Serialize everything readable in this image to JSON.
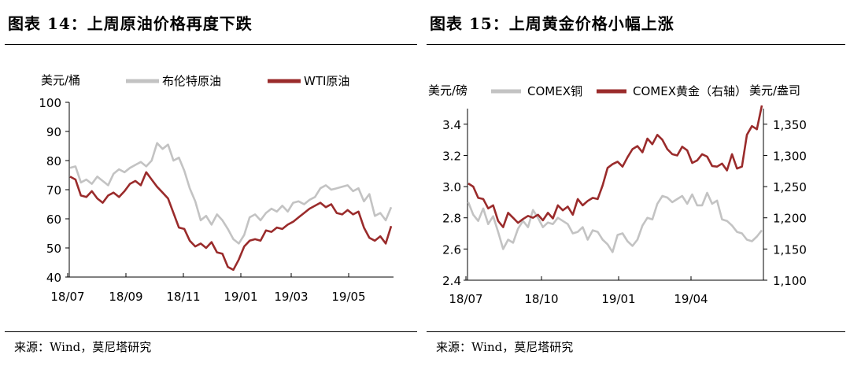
{
  "figures": [
    {
      "title": "图表 14：上周原油价格再度下跌",
      "source": "来源：Wind，莫尼塔研究",
      "chart_data": {
        "type": "line",
        "y_unit": "美元/桶",
        "ylim": [
          40,
          100
        ],
        "yticks": [
          "100",
          "90",
          "80",
          "70",
          "60",
          "50",
          "40"
        ],
        "xticks": [
          "18/07",
          "18/09",
          "18/11",
          "19/01",
          "19/03",
          "19/05"
        ],
        "x_range": [
          "2018-07",
          "2019-06 end"
        ],
        "legend": "top",
        "grid": false,
        "series": [
          {
            "name": "布伦特原油",
            "color": "#c3c3c3",
            "axis": "left",
            "values": [
              77.5,
              78.0,
              72.5,
              73.5,
              72.0,
              74.5,
              73.0,
              71.5,
              75.5,
              77.0,
              76.0,
              77.5,
              78.5,
              79.5,
              78.0,
              80.0,
              86.0,
              84.0,
              85.5,
              80.0,
              81.0,
              76.5,
              70.5,
              66.0,
              59.5,
              61.0,
              58.0,
              61.5,
              59.5,
              56.5,
              53.0,
              51.5,
              54.5,
              60.5,
              61.5,
              59.5,
              62.0,
              63.5,
              62.5,
              64.5,
              62.5,
              65.5,
              66.0,
              65.0,
              66.5,
              67.5,
              70.5,
              71.5,
              70.0,
              70.5,
              71.0,
              71.5,
              69.5,
              70.5,
              66.0,
              68.5,
              61.0,
              62.0,
              59.5,
              64.0
            ]
          },
          {
            "name": "WTI原油",
            "color": "#9a2b2b",
            "axis": "left",
            "values": [
              74.5,
              73.5,
              68.0,
              67.5,
              69.5,
              67.0,
              65.5,
              68.0,
              69.0,
              67.5,
              69.5,
              72.0,
              73.0,
              71.5,
              76.0,
              73.5,
              71.0,
              69.0,
              67.0,
              62.0,
              57.0,
              56.5,
              52.5,
              50.5,
              51.5,
              50.0,
              52.0,
              48.5,
              48.0,
              43.5,
              42.5,
              46.0,
              50.5,
              52.5,
              53.0,
              52.5,
              56.0,
              55.5,
              57.0,
              56.5,
              58.0,
              59.0,
              60.5,
              62.0,
              63.5,
              64.5,
              65.5,
              64.0,
              65.0,
              62.0,
              61.5,
              63.0,
              61.5,
              62.5,
              57.0,
              53.5,
              52.5,
              54.0,
              51.5,
              57.5
            ]
          }
        ]
      }
    },
    {
      "title": "图表 15：上周黄金价格小幅上涨",
      "source": "来源：Wind，莫尼塔研究",
      "chart_data": {
        "type": "line",
        "y_unit_left": "美元/磅",
        "y_unit_right": "美元/盎司",
        "ylim_left": [
          2.4,
          3.5
        ],
        "ylim_right": [
          1100,
          1375
        ],
        "yticks_left": [
          "3.4",
          "3.2",
          "3.0",
          "2.8",
          "2.6",
          "2.4"
        ],
        "yticks_right": [
          "1,350",
          "1,300",
          "1,250",
          "1,200",
          "1,150",
          "1,100"
        ],
        "xticks": [
          "18/07",
          "18/10",
          "19/01",
          "19/04"
        ],
        "x_range": [
          "2018-07",
          "2019-06 end"
        ],
        "legend": "top",
        "legend_right_axis_note": "（右轴）",
        "grid": false,
        "series": [
          {
            "name": "COMEX铜",
            "color": "#c3c3c3",
            "axis": "left",
            "values": [
              2.9,
              2.82,
              2.78,
              2.86,
              2.76,
              2.81,
              2.71,
              2.6,
              2.66,
              2.64,
              2.73,
              2.78,
              2.74,
              2.85,
              2.8,
              2.74,
              2.77,
              2.76,
              2.8,
              2.78,
              2.76,
              2.7,
              2.71,
              2.74,
              2.66,
              2.72,
              2.71,
              2.66,
              2.63,
              2.58,
              2.69,
              2.7,
              2.65,
              2.62,
              2.66,
              2.75,
              2.8,
              2.79,
              2.89,
              2.94,
              2.93,
              2.9,
              2.92,
              2.94,
              2.89,
              2.95,
              2.88,
              2.88,
              2.96,
              2.89,
              2.91,
              2.79,
              2.78,
              2.75,
              2.71,
              2.7,
              2.66,
              2.65,
              2.68,
              2.72
            ]
          },
          {
            "name": "COMEX黄金",
            "color": "#9a2b2b",
            "axis": "right",
            "values": [
              1255,
              1250,
              1232,
              1230,
              1215,
              1220,
              1195,
              1185,
              1208,
              1200,
              1192,
              1198,
              1203,
              1200,
              1205,
              1196,
              1208,
              1199,
              1220,
              1212,
              1218,
              1205,
              1230,
              1220,
              1227,
              1232,
              1230,
              1252,
              1280,
              1286,
              1290,
              1282,
              1297,
              1310,
              1315,
              1305,
              1327,
              1318,
              1333,
              1325,
              1310,
              1302,
              1300,
              1314,
              1308,
              1288,
              1292,
              1302,
              1298,
              1283,
              1282,
              1287,
              1276,
              1302,
              1279,
              1282,
              1333,
              1347,
              1342,
              1380
            ]
          }
        ]
      }
    }
  ]
}
